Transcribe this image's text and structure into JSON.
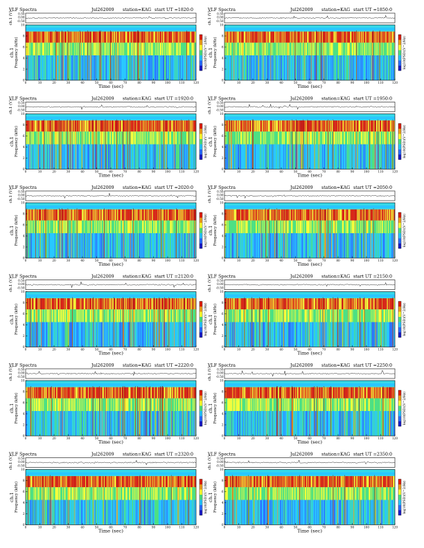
{
  "header_label": "VLF Spectra",
  "station_label": "station=KAG",
  "ut_prefix": "start  UT  =",
  "top_axis_label": "ch.1 (V)",
  "freq_label_line1": "ch.1",
  "freq_label_line2": "Frequency  (kHz)",
  "time_label": "Time  (sec)",
  "colorbar_label": "log",
  "colorbar_label_full": "log10(PSD)(V^2/Hz)",
  "panels": [
    {
      "id": "p1820",
      "date": "Jul262009",
      "start_ut": "1820:0"
    },
    {
      "id": "p1850",
      "date": "Jul262009",
      "start_ut": "1850:0"
    },
    {
      "id": "p1920",
      "date": "Jul262009",
      "start_ut": "1920:0"
    },
    {
      "id": "p1950",
      "date": "Jul262009",
      "start_ut": "1950:0"
    },
    {
      "id": "p2020",
      "date": "Jul262009",
      "start_ut": "2020:0"
    },
    {
      "id": "p2050",
      "date": "Jul262009",
      "start_ut": "2050:0"
    },
    {
      "id": "p2120",
      "date": "Jul262009",
      "start_ut": "2120:0"
    },
    {
      "id": "p2150",
      "date": "Jul262009",
      "start_ut": "2150:0"
    },
    {
      "id": "p2220",
      "date": "Jul262009",
      "start_ut": "2220:0"
    },
    {
      "id": "p2250",
      "date": "Jul262009",
      "start_ut": "2250:0"
    },
    {
      "id": "p2320",
      "date": "Jul262009",
      "start_ut": "2320:0"
    },
    {
      "id": "p2350",
      "date": "Jul262009",
      "start_ut": "2350:0"
    }
  ],
  "chart_data": {
    "type": "heatmap",
    "x_axis": {
      "label": "Time  (sec)",
      "range": [
        0,
        120
      ],
      "ticks": [
        "0",
        "10",
        "20",
        "30",
        "40",
        "50",
        "60",
        "70",
        "80",
        "90",
        "100",
        "110",
        "120"
      ]
    },
    "y_axis": {
      "label": "Frequency  (kHz)",
      "range": [
        0,
        10
      ],
      "ticks": [
        "0",
        "2",
        "4",
        "6",
        "8",
        "10"
      ]
    },
    "waveform_axis": {
      "label": "ch.1 (V)",
      "ticks": [
        "0.50",
        "0.00",
        "-0.50"
      ]
    },
    "colorbar": {
      "label": "log10(PSD)(V^2/Hz)",
      "colors": [
        "#1c1cc8",
        "#2c6fff",
        "#29c7ff",
        "#4fe07f",
        "#ffff33",
        "#f0a020",
        "#e02010"
      ]
    },
    "panel_grid": {
      "rows": 6,
      "columns": 2
    }
  }
}
